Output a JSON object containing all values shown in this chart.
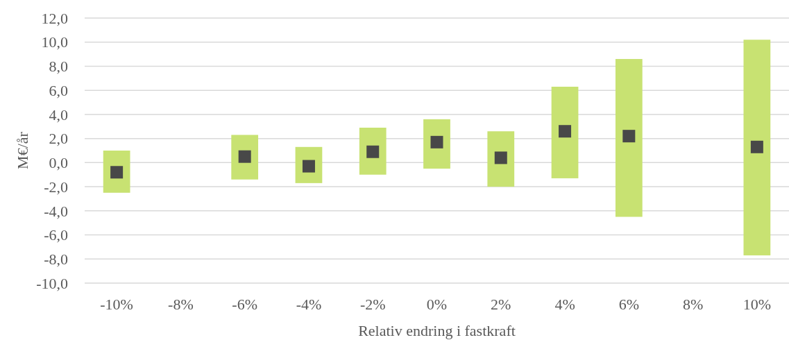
{
  "chart_data": {
    "type": "bar",
    "xlabel": "Relativ endring i fastkraft",
    "ylabel": "M€/år",
    "categories": [
      "-10%",
      "-8%",
      "-6%",
      "-4%",
      "-2%",
      "0%",
      "2%",
      "4%",
      "6%",
      "8%",
      "10%"
    ],
    "series": [
      {
        "type": "bar",
        "color": "#c8e272",
        "base": [
          -2.5,
          null,
          -1.4,
          -1.7,
          -1.0,
          -0.5,
          -2.0,
          -1.3,
          -4.5,
          null,
          -7.7
        ],
        "values": [
          3.5,
          null,
          3.7,
          3.0,
          3.9,
          4.1,
          4.6,
          7.6,
          13.1,
          null,
          17.9
        ]
      },
      {
        "type": "scatter",
        "color": "#484848",
        "values": [
          -0.8,
          null,
          0.5,
          -0.3,
          0.9,
          1.7,
          0.4,
          2.6,
          2.2,
          null,
          1.3
        ]
      }
    ],
    "marker": "square",
    "ylim": [
      -10,
      12
    ],
    "yticks": [
      {
        "value": -10,
        "label": "-10,0"
      },
      {
        "value": -8,
        "label": "-8,0"
      },
      {
        "value": -6,
        "label": "-6,0"
      },
      {
        "value": -4,
        "label": "-4,0"
      },
      {
        "value": -2,
        "label": "-2,0"
      },
      {
        "value": 0,
        "label": "0,0"
      },
      {
        "value": 2,
        "label": "2,0"
      },
      {
        "value": 4,
        "label": "4,0"
      },
      {
        "value": 6,
        "label": "6,0"
      },
      {
        "value": 8,
        "label": "8,0"
      },
      {
        "value": 10,
        "label": "10,0"
      },
      {
        "value": 12,
        "label": "12,0"
      }
    ],
    "grid": "y"
  }
}
